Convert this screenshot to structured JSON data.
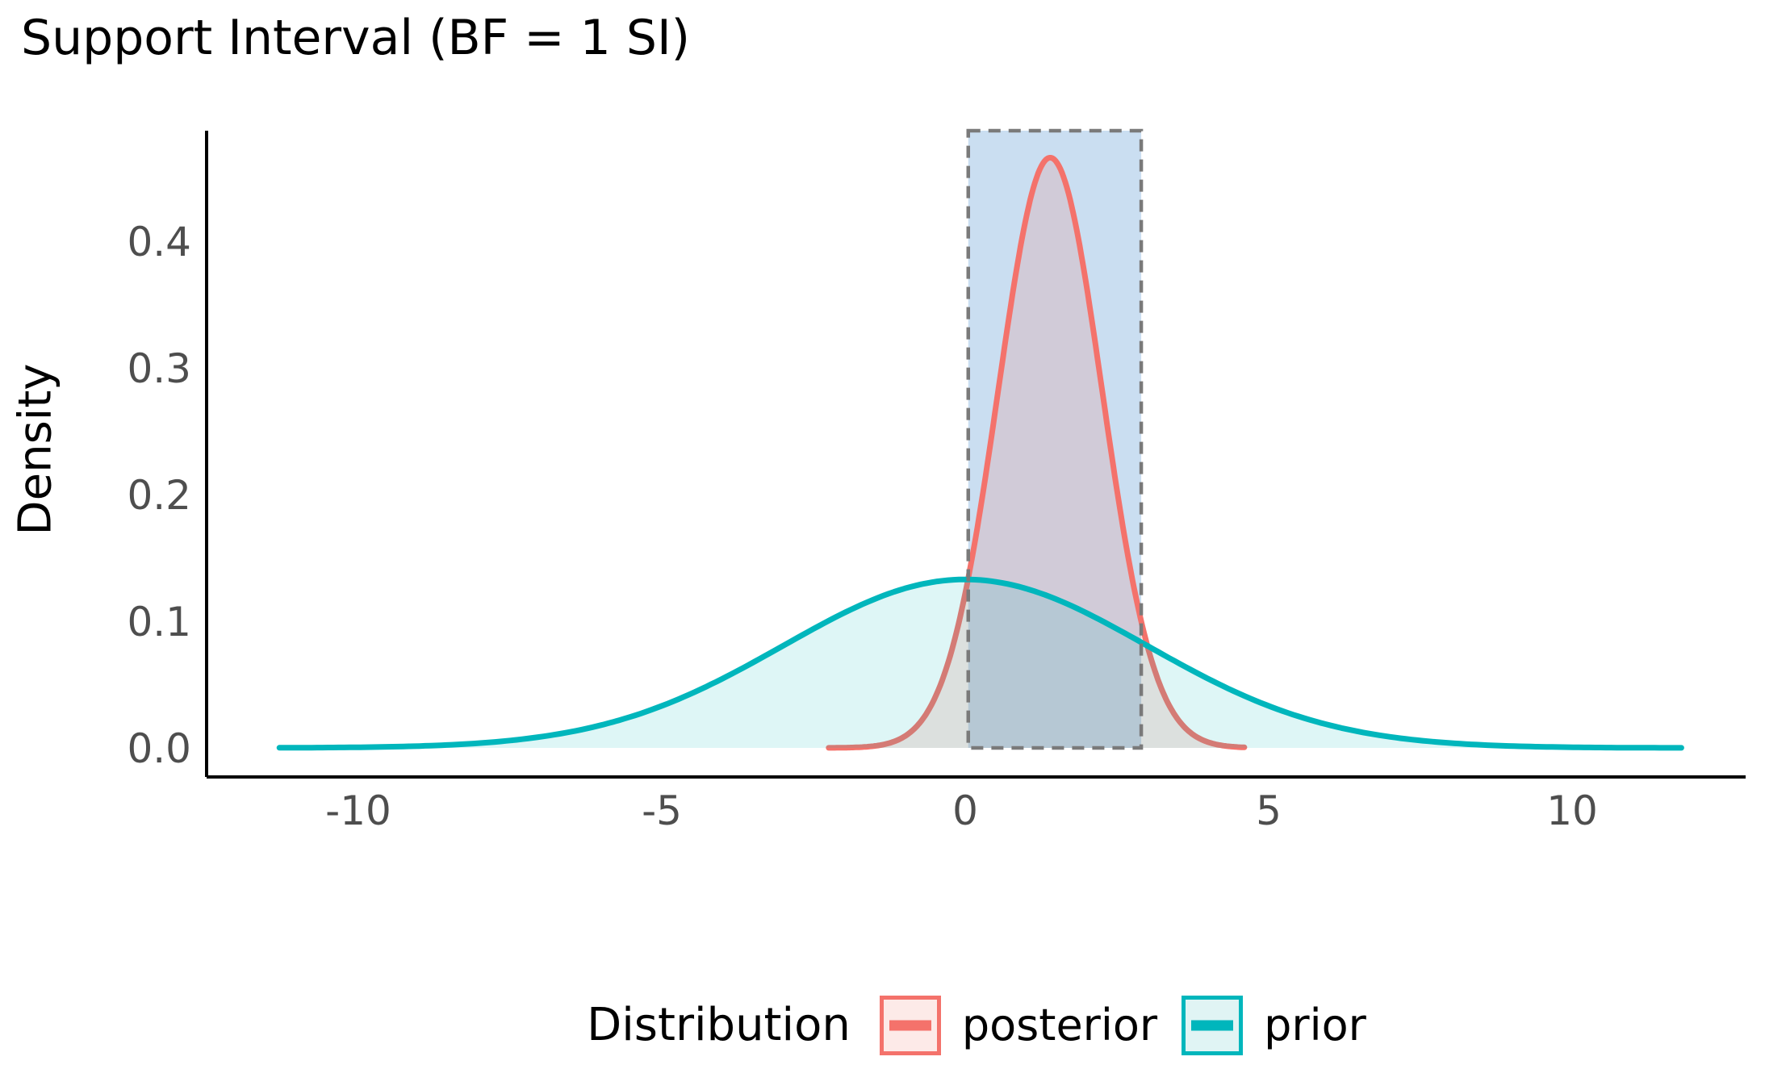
{
  "title": "Support Interval (BF = 1 SI)",
  "legend": {
    "title": "Distribution",
    "items": [
      {
        "label": "posterior",
        "line_color": "#f4726b",
        "swatch_fill": "#fdeae8"
      },
      {
        "label": "prior",
        "line_color": "#00b6bc",
        "swatch_fill": "#e0f4f4"
      }
    ]
  },
  "chart_data": {
    "type": "area",
    "title": "Support Interval (BF = 1 SI)",
    "xlabel": "",
    "ylabel": "Density",
    "x_ticks": [
      "-10",
      "-5",
      "0",
      "5",
      "10"
    ],
    "x_tick_values": [
      -10,
      -5,
      0,
      5,
      10
    ],
    "y_ticks": [
      "0.0",
      "0.1",
      "0.2",
      "0.3",
      "0.4"
    ],
    "y_tick_values": [
      0.0,
      0.1,
      0.2,
      0.3,
      0.4
    ],
    "xlim": [
      -12.5,
      12.9
    ],
    "ylim": [
      -0.023,
      0.487
    ],
    "grid": false,
    "legend_position": "bottom",
    "series": [
      {
        "name": "posterior",
        "distribution": "normal",
        "mean": 1.4,
        "sd": 0.855,
        "peak_density": 0.466,
        "x_range": [
          -2.25,
          4.6
        ],
        "line_color": "#f4726b",
        "fill_color": "rgba(244,114,107,0.18)"
      },
      {
        "name": "prior",
        "distribution": "normal",
        "mean": 0,
        "sd": 3.0,
        "peak_density": 0.133,
        "x_range": [
          -11.3,
          11.8
        ],
        "line_color": "#00b6bc",
        "fill_color": "rgba(0,182,188,0.13)"
      }
    ],
    "support_interval": {
      "from": 0.05,
      "to": 2.9,
      "fill_color": "#cadef1",
      "border_color": "#7a7a7a",
      "border_style": "dashed"
    },
    "axis_color": "#000000",
    "tick_label_color": "#4e4e4e"
  }
}
